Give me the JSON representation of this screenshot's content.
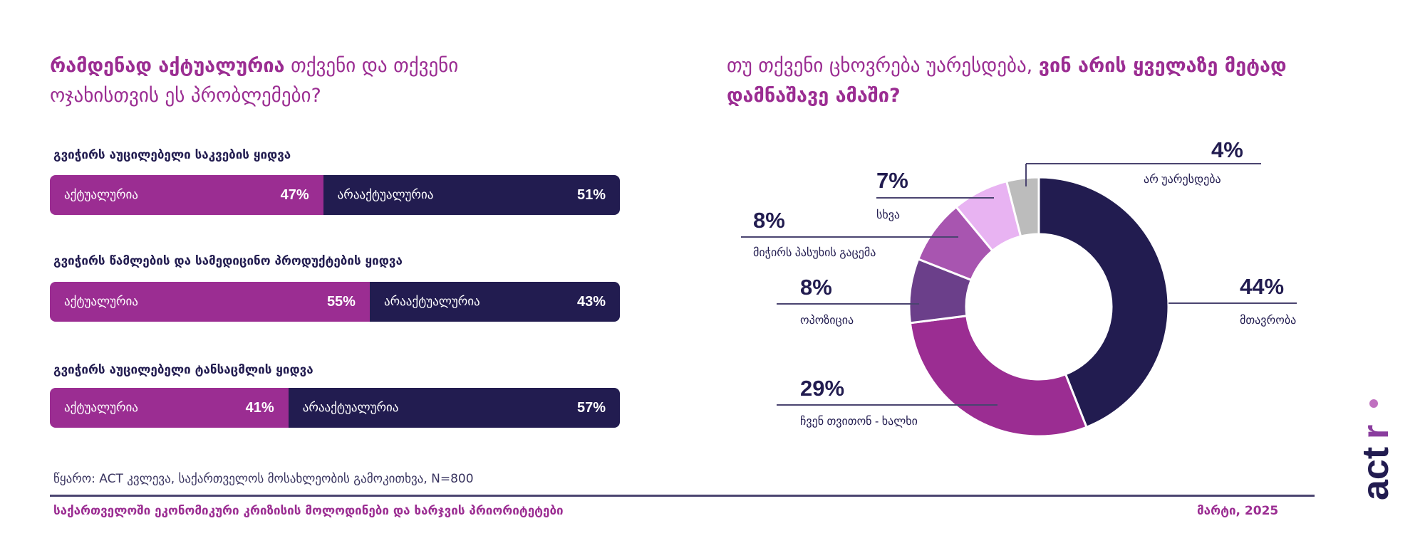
{
  "left": {
    "title_bold": "რამდენად აქტუალურია",
    "title_rest": " თქვენი და თქვენი ოჯახისთვის ეს პრობლემები?"
  },
  "right": {
    "title_rest": "თუ თქვენი ცხოვრება უარესდება, ",
    "title_bold": "ვინ არის ყველაზე მეტად დამნაშავე ამაში?"
  },
  "chart_data": [
    {
      "type": "bar",
      "orientation": "horizontal-stacked",
      "categories": [
        "გვიჭირს აუცილებელი საკვების ყიდვა",
        "გვიჭირს წამლების და სამედიცინო პროდუქტების ყიდვა",
        "გვიჭირს აუცილებელი ტანსაცმლის ყიდვა"
      ],
      "series": [
        {
          "name": "აქტუალურია",
          "values": [
            47,
            55,
            41
          ],
          "color": "#9b2d92"
        },
        {
          "name": "არააქტუალურია",
          "values": [
            51,
            43,
            57
          ],
          "color": "#221c50"
        }
      ],
      "unit": "%"
    },
    {
      "type": "pie",
      "donut": true,
      "slices": [
        {
          "label": "მთავრობა",
          "value": 44,
          "color": "#221c50"
        },
        {
          "label": "ჩვენ თვითონ - ხალხი",
          "value": 29,
          "color": "#9b2d92"
        },
        {
          "label": "ოპოზიცია",
          "value": 8,
          "color": "#6b3f8a"
        },
        {
          "label": "მიჭირს პასუხის გაცემა",
          "value": 8,
          "color": "#a855b0"
        },
        {
          "label": "სხვა",
          "value": 7,
          "color": "#e8b3f2"
        },
        {
          "label": "არ უარესდება",
          "value": 4,
          "color": "#bcbcbc"
        }
      ],
      "unit": "%"
    }
  ],
  "footer": {
    "source": "წყარო: ACT კვლევა, საქართველოს მოსახლეობის გამოკითხვა, N=800",
    "report_title": "საქართველოში ეკონომიკური კრიზისის მოლოდინები და ხარჯვის პრიორიტეტები",
    "date": "მარტი, 2025"
  },
  "logo": {
    "text": "actr"
  }
}
